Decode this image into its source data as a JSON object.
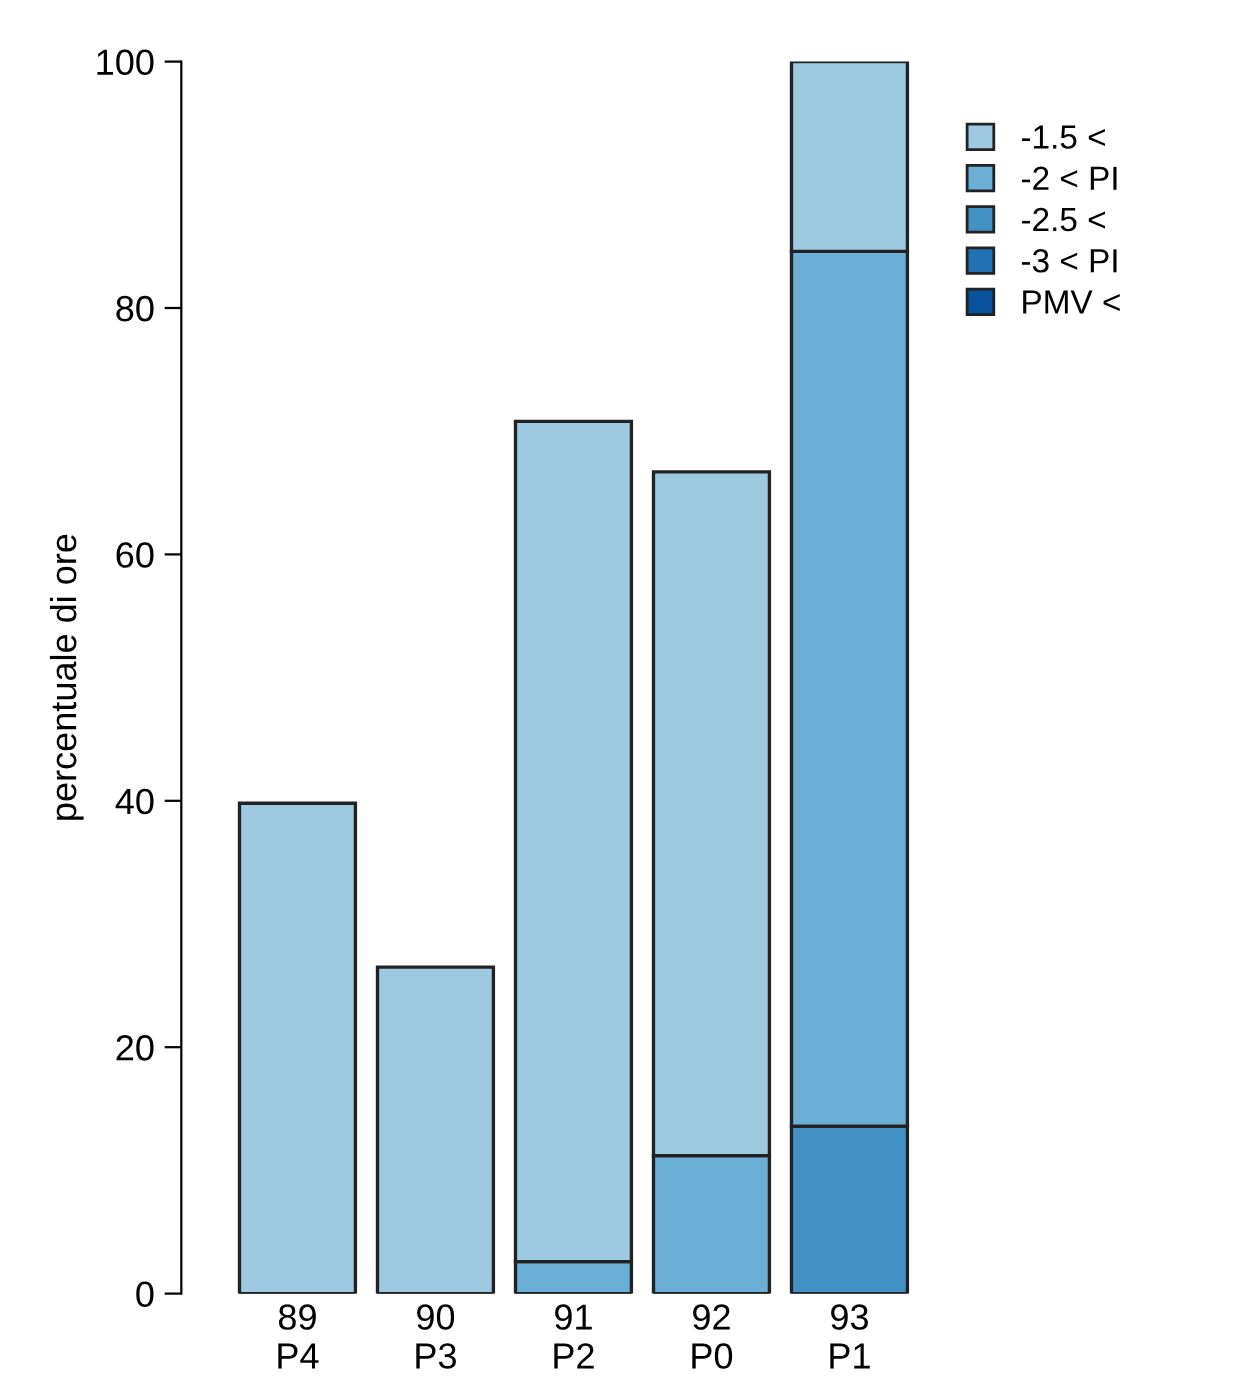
{
  "chart_data": {
    "type": "bar",
    "stacked": true,
    "ylabel": "percentuale di ore",
    "categories": [
      "89\nP4",
      "90\nP3",
      "91\nP2",
      "92\nP0",
      "93\nP1"
    ],
    "series": [
      {
        "name": "PMV <",
        "color": "#08519c",
        "values": [
          0,
          0,
          0,
          0,
          0
        ]
      },
      {
        "name": "-3 < PI",
        "color": "#2171b5",
        "values": [
          0,
          0,
          0,
          0,
          0
        ]
      },
      {
        "name": "-2.5 <",
        "color": "#4292c6",
        "values": [
          0,
          0,
          0,
          0,
          13.6
        ]
      },
      {
        "name": "-2 < PI",
        "color": "#6baed6",
        "values": [
          0,
          null,
          2.6,
          11.2,
          71.0
        ]
      },
      {
        "name": "-1.5 <",
        "color": "#9ecae1",
        "values": [
          39.8,
          26.5,
          68.2,
          55.5,
          15.4
        ]
      }
    ],
    "ylim": [
      0,
      100
    ],
    "yticks": [
      0,
      20,
      40,
      60,
      80,
      100
    ],
    "grid": false,
    "legend": "top right"
  }
}
